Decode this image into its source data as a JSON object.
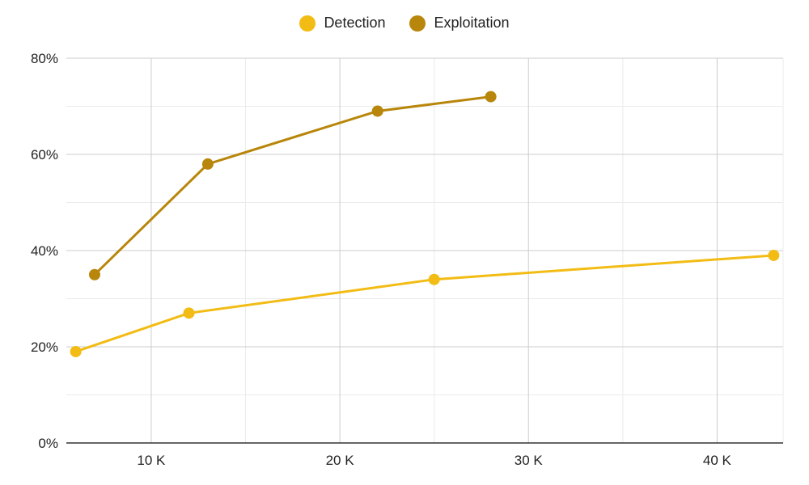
{
  "chart_data": {
    "type": "line",
    "title": "",
    "xlabel": "",
    "ylabel": "",
    "xlim": [
      5500,
      43500
    ],
    "ylim": [
      0,
      80
    ],
    "x_ticks": [
      10000,
      20000,
      30000,
      40000
    ],
    "x_tick_labels": [
      "10 K",
      "20 K",
      "30 K",
      "40 K"
    ],
    "y_ticks": [
      0,
      20,
      40,
      60,
      80
    ],
    "y_tick_labels": [
      "0%",
      "20%",
      "40%",
      "60%",
      "80%"
    ],
    "grid": true,
    "legend_position": "top-center",
    "series": [
      {
        "name": "Detection",
        "color": "#F2BC14",
        "x": [
          6000,
          12000,
          25000,
          43000
        ],
        "y": [
          19,
          27,
          34,
          39
        ]
      },
      {
        "name": "Exploitation",
        "color": "#B8860B",
        "x": [
          7000,
          13000,
          22000,
          28000
        ],
        "y": [
          35,
          58,
          69,
          72
        ]
      }
    ]
  }
}
